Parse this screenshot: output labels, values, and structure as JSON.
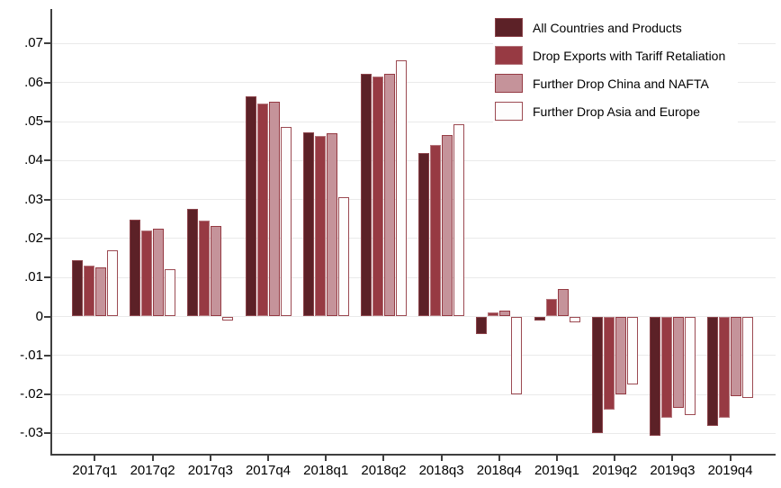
{
  "chart_data": {
    "type": "bar",
    "title": "",
    "xlabel": "",
    "ylabel": "",
    "grid": true,
    "legend_position": "top-right",
    "ylim": [
      -0.035,
      0.075
    ],
    "y_ticks": [
      0.07,
      0.06,
      0.05,
      0.04,
      0.03,
      0.02,
      0.01,
      0,
      -0.01,
      -0.02,
      -0.03
    ],
    "y_tick_labels": [
      ".07",
      ".06",
      ".05",
      ".04",
      ".03",
      ".02",
      ".01",
      "0",
      "-.01",
      "-.02",
      "-.03"
    ],
    "categories": [
      "2017q1",
      "2017q2",
      "2017q3",
      "2017q4",
      "2018q1",
      "2018q2",
      "2018q3",
      "2018q4",
      "2019q1",
      "2019q2",
      "2019q3",
      "2019q4"
    ],
    "series": [
      {
        "name": "All Countries and Products",
        "fill": "#5c2127",
        "border": "#8c444b",
        "values": [
          0.0145,
          0.0248,
          0.0277,
          0.0565,
          0.0472,
          0.0623,
          0.0419,
          -0.0045,
          -0.001,
          -0.03,
          -0.0307,
          -0.028
        ]
      },
      {
        "name": "Drop Exports with Tariff Retaliation",
        "fill": "#973a43",
        "border": "#b4757b",
        "values": [
          0.013,
          0.022,
          0.0247,
          0.0546,
          0.0462,
          0.0616,
          0.044,
          0.001,
          0.0045,
          -0.024,
          -0.026,
          -0.026
        ]
      },
      {
        "name": "Further Drop China and NAFTA",
        "fill": "#c5939a",
        "border": "#953a43",
        "values": [
          0.0126,
          0.0225,
          0.0232,
          0.055,
          0.0469,
          0.0622,
          0.0465,
          0.0015,
          0.007,
          -0.02,
          -0.0235,
          -0.0205
        ]
      },
      {
        "name": "Further Drop Asia and Europe",
        "fill": "#fefdfd",
        "border": "#9c4a52",
        "values": [
          0.0169,
          0.0121,
          -0.001,
          0.0487,
          0.0305,
          0.0658,
          0.0494,
          -0.02,
          -0.0015,
          -0.0175,
          -0.0252,
          -0.021
        ]
      }
    ]
  }
}
